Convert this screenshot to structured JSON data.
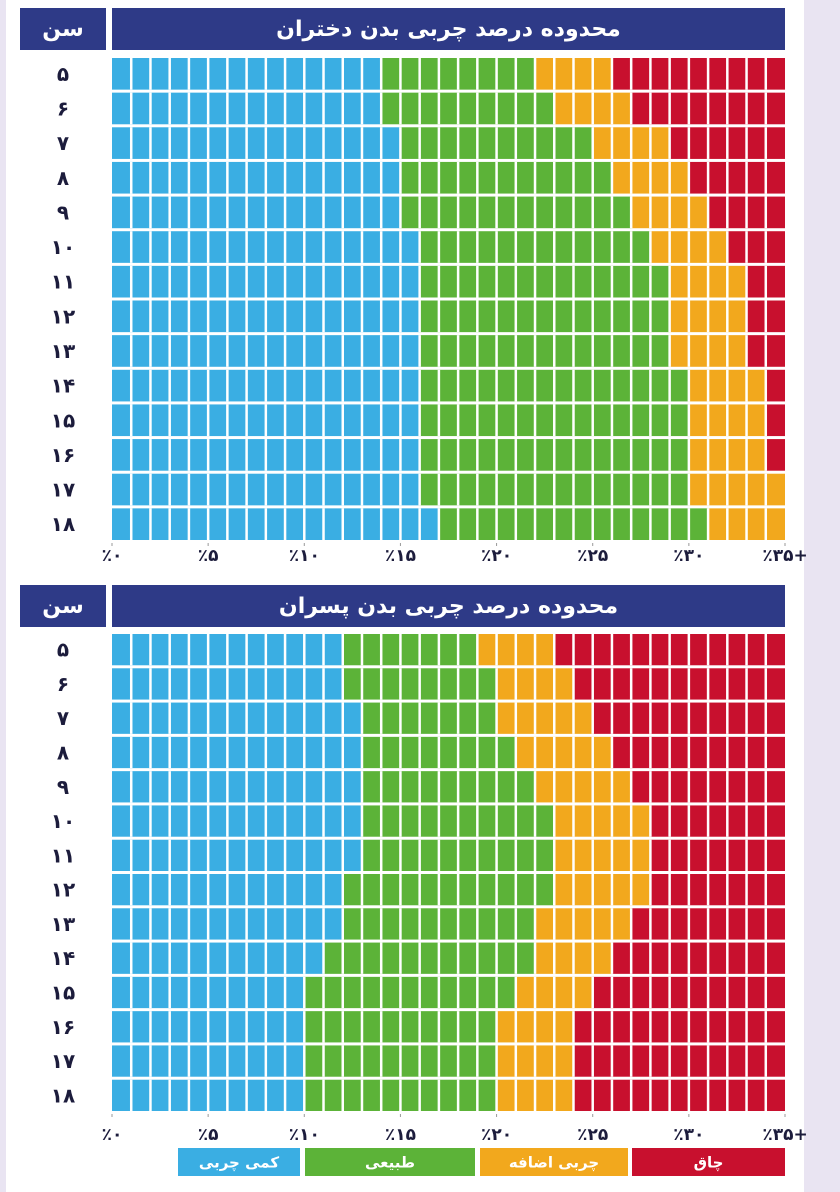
{
  "chart_data": [
    {
      "type": "bar",
      "orientation": "horizontal",
      "stacked": true,
      "title": "محدوده درصد چربی بدن دختران",
      "age_label": "سن",
      "categories": [
        "۵",
        "۶",
        "۷",
        "۸",
        "۹",
        "۱۰",
        "۱۱",
        "۱۲",
        "۱۳",
        "۱۴",
        "۱۵",
        "۱۶",
        "۱۷",
        "۱۸"
      ],
      "series": [
        {
          "color": "#3aaee3",
          "values": [
            14,
            14,
            15,
            15,
            15,
            16,
            16,
            16,
            16,
            16,
            16,
            16,
            16,
            17
          ]
        },
        {
          "color": "#5cb338",
          "values": [
            8,
            9,
            10,
            11,
            12,
            12,
            13,
            13,
            13,
            14,
            14,
            14,
            14,
            14
          ]
        },
        {
          "color": "#f2a81d",
          "values": [
            4,
            4,
            4,
            4,
            4,
            4,
            4,
            4,
            4,
            4,
            4,
            4,
            5,
            4
          ]
        },
        {
          "color": "#c8102e",
          "values": [
            9,
            8,
            6,
            5,
            4,
            3,
            2,
            2,
            2,
            1,
            1,
            1,
            0,
            0
          ]
        }
      ],
      "xlim": [
        0,
        35
      ],
      "xticks": [
        {
          "value": 0,
          "label": "٪۰"
        },
        {
          "value": 5,
          "label": "٪۵"
        },
        {
          "value": 10,
          "label": "٪۱۰"
        },
        {
          "value": 15,
          "label": "٪۱۵"
        },
        {
          "value": 20,
          "label": "٪۲۰"
        },
        {
          "value": 25,
          "label": "٪۲۵"
        },
        {
          "value": 30,
          "label": "٪۳۰"
        },
        {
          "value": 35,
          "label": "٪۳۵+"
        }
      ]
    },
    {
      "type": "bar",
      "orientation": "horizontal",
      "stacked": true,
      "title": "محدوده درصد چربی بدن پسران",
      "age_label": "سن",
      "categories": [
        "۵",
        "۶",
        "۷",
        "۸",
        "۹",
        "۱۰",
        "۱۱",
        "۱۲",
        "۱۳",
        "۱۴",
        "۱۵",
        "۱۶",
        "۱۷",
        "۱۸"
      ],
      "series": [
        {
          "name": "کمی چربی",
          "color": "#3aaee3",
          "values": [
            12,
            12,
            13,
            13,
            13,
            13,
            13,
            12,
            12,
            11,
            10,
            10,
            10,
            10
          ]
        },
        {
          "name": "طبیعی",
          "color": "#5cb338",
          "values": [
            7,
            8,
            7,
            8,
            9,
            10,
            10,
            11,
            10,
            11,
            11,
            10,
            10,
            10
          ]
        },
        {
          "name": "چربی اضافه",
          "color": "#f2a81d",
          "values": [
            4,
            4,
            5,
            5,
            5,
            5,
            5,
            5,
            5,
            4,
            4,
            4,
            4,
            4
          ]
        },
        {
          "name": "چاق",
          "color": "#c8102e",
          "values": [
            12,
            11,
            10,
            9,
            8,
            7,
            7,
            7,
            8,
            9,
            10,
            11,
            11,
            11
          ]
        }
      ],
      "xlim": [
        0,
        35
      ],
      "xticks": [
        {
          "value": 0,
          "label": "٪۰"
        },
        {
          "value": 5,
          "label": "٪۵"
        },
        {
          "value": 10,
          "label": "٪۱۰"
        },
        {
          "value": 15,
          "label": "٪۱۵"
        },
        {
          "value": 20,
          "label": "٪۲۰"
        },
        {
          "value": 25,
          "label": "٪۲۵"
        },
        {
          "value": 30,
          "label": "٪۳۰"
        },
        {
          "value": 35,
          "label": "٪۳۵+"
        }
      ]
    }
  ]
}
